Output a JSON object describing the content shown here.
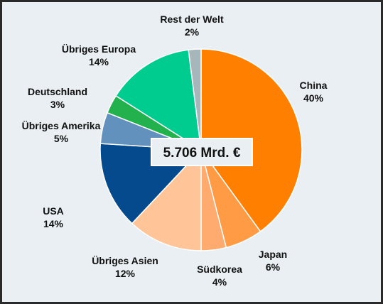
{
  "chart_data": {
    "type": "pie",
    "title": "",
    "center_label": "5.706 Mrd. €",
    "slices": [
      {
        "name": "China",
        "pct_label": "40%",
        "value": 40,
        "color": "#ff8000"
      },
      {
        "name": "Japan",
        "pct_label": "6%",
        "value": 6,
        "color": "#ff9b45"
      },
      {
        "name": "Südkorea",
        "pct_label": "4%",
        "value": 4,
        "color": "#ffab70"
      },
      {
        "name": "Übriges Asien",
        "pct_label": "12%",
        "value": 12,
        "color": "#ffc599"
      },
      {
        "name": "USA",
        "pct_label": "14%",
        "value": 14,
        "color": "#054a8c"
      },
      {
        "name": "Übriges Amerika",
        "pct_label": "5%",
        "value": 5,
        "color": "#6391bd"
      },
      {
        "name": "Deutschland",
        "pct_label": "3%",
        "value": 3,
        "color": "#22b14c"
      },
      {
        "name": "Übriges Europa",
        "pct_label": "14%",
        "value": 14,
        "color": "#00cc8f"
      },
      {
        "name": "Rest der Welt",
        "pct_label": "2%",
        "value": 2,
        "color": "#a7b6bb"
      }
    ]
  }
}
